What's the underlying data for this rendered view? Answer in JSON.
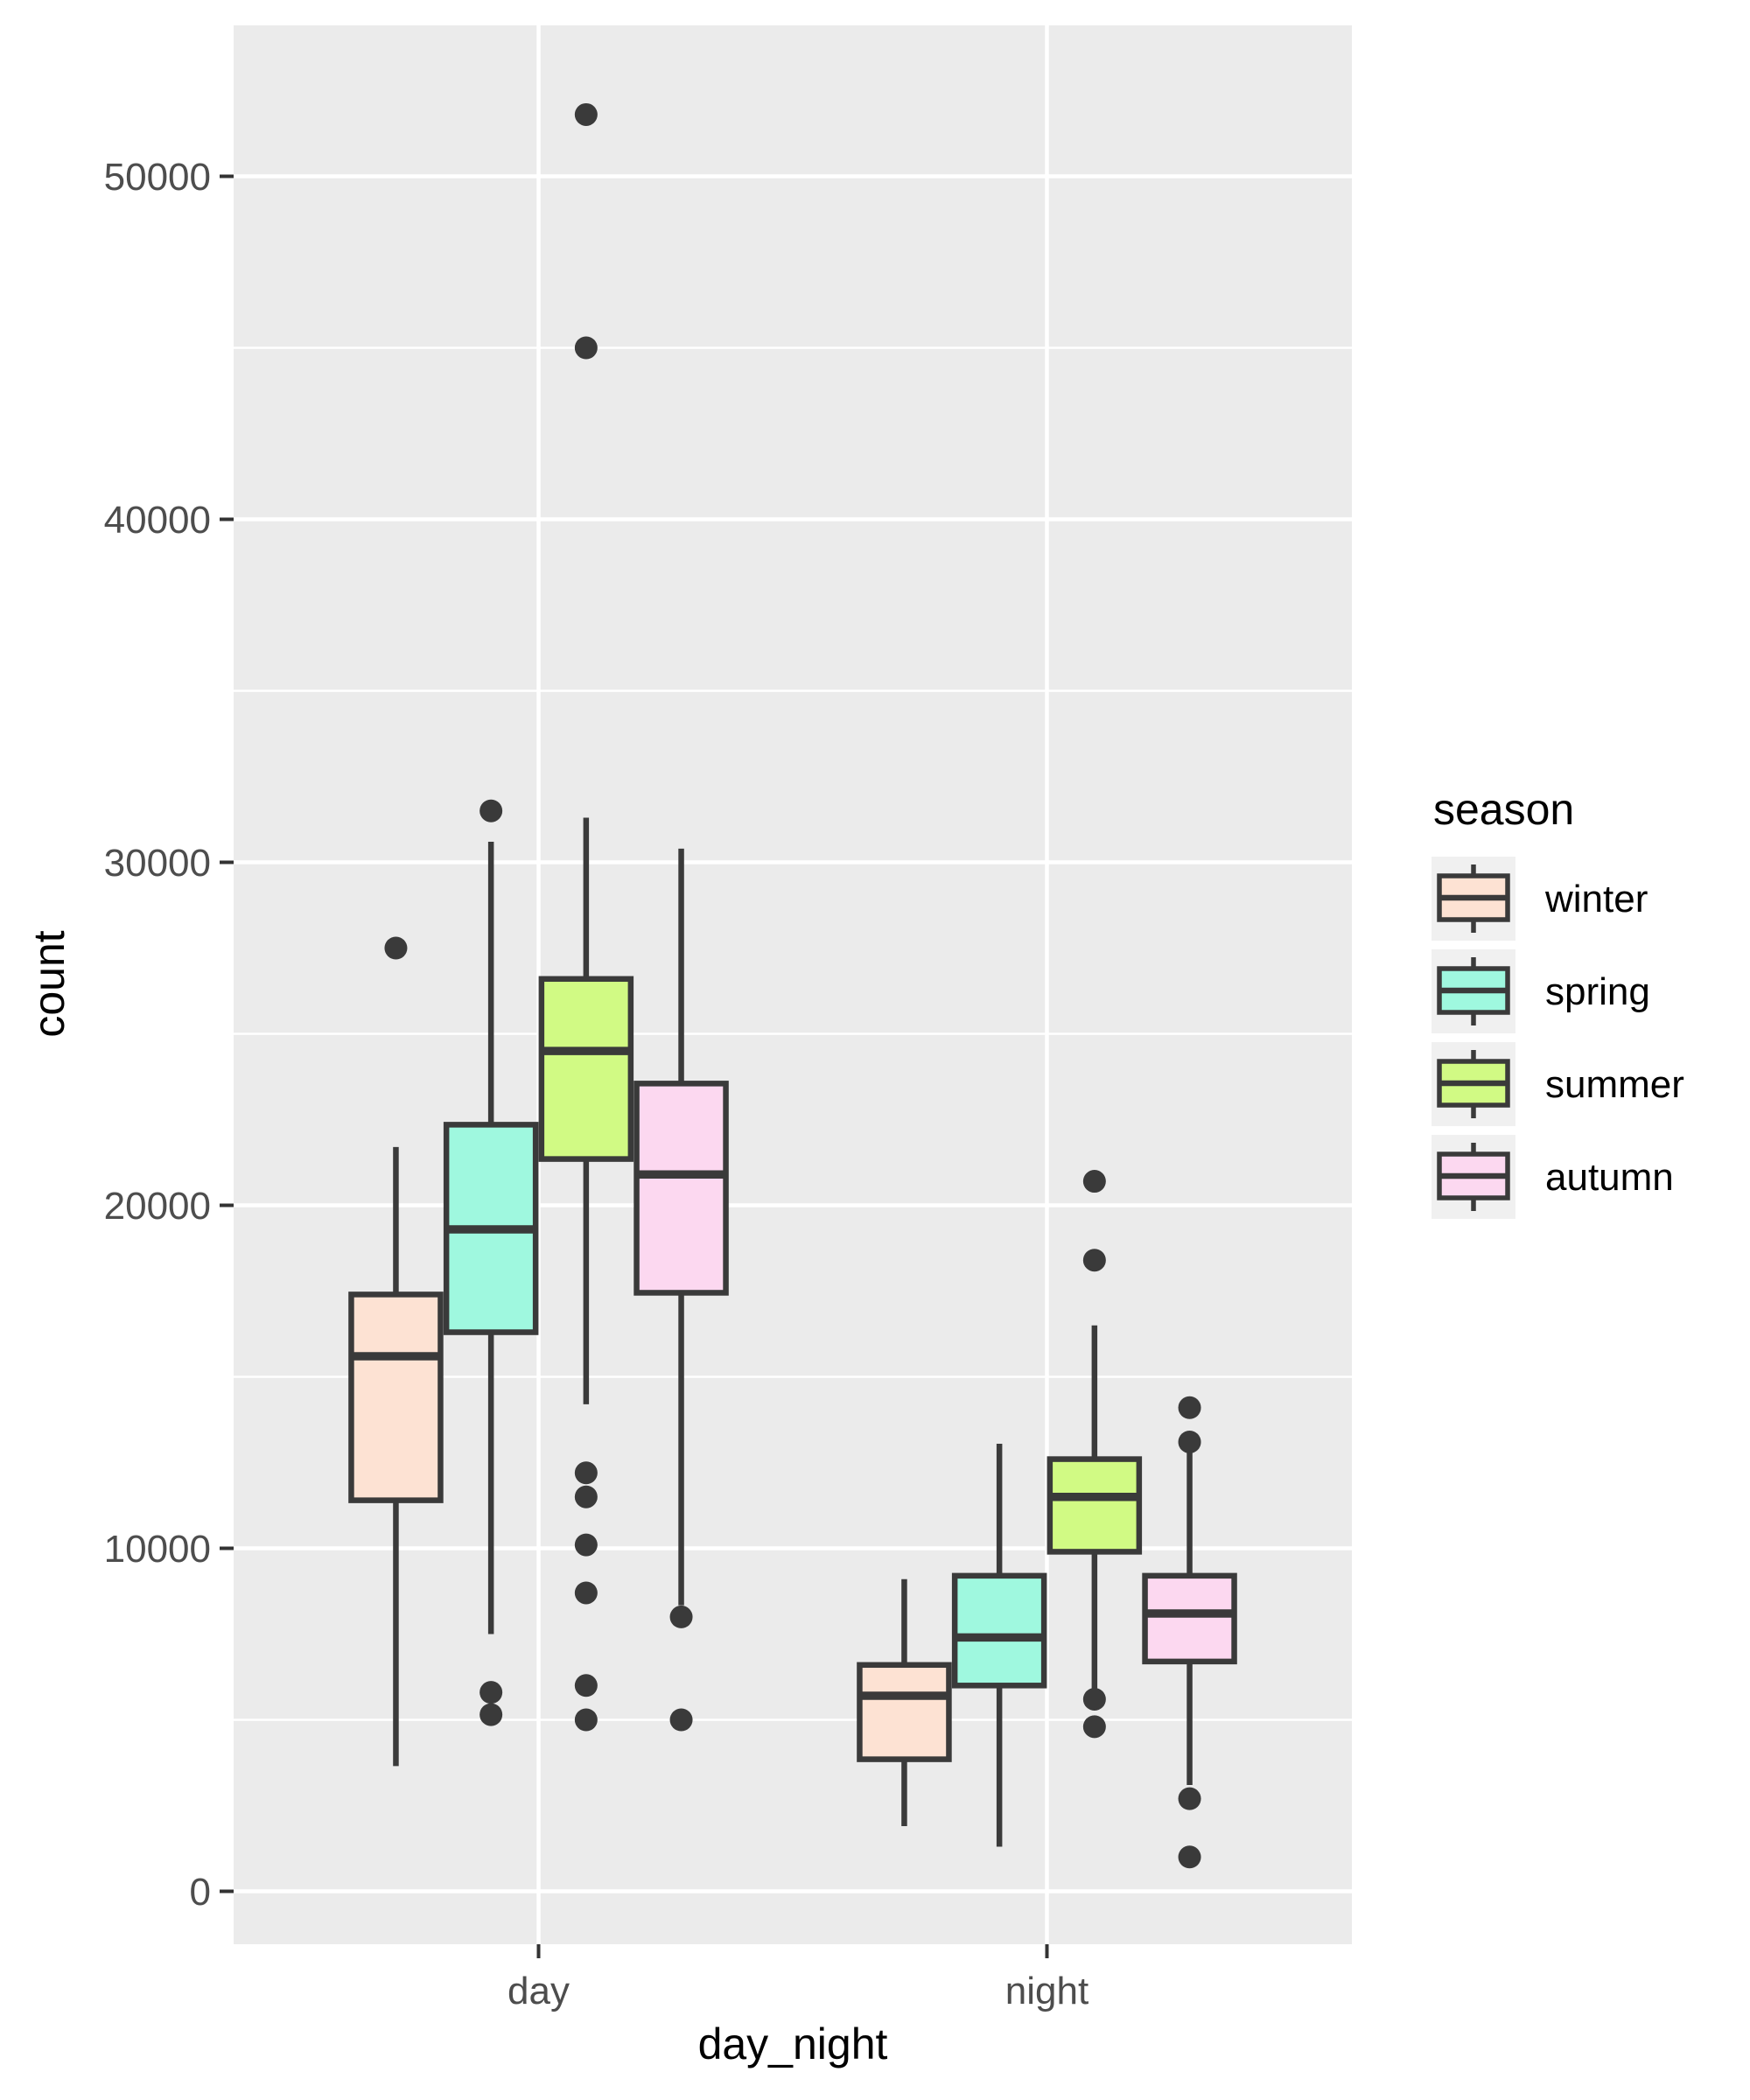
{
  "figure": {
    "background": "#FFFFFF"
  },
  "panel": {
    "background": "#EBEBEB",
    "grid_major_color": "#FFFFFF",
    "grid_minor_color": "#FFFFFF"
  },
  "axes": {
    "x": {
      "title": "day_night",
      "categories": [
        "day",
        "night"
      ]
    },
    "y": {
      "title": "count",
      "tick_labels": [
        "0",
        "10000",
        "20000",
        "30000",
        "40000",
        "50000"
      ],
      "tick_values": [
        0,
        10000,
        20000,
        30000,
        40000,
        50000
      ],
      "minor_tick_values": [
        5000,
        15000,
        25000,
        35000,
        45000
      ]
    }
  },
  "legend": {
    "title": "season"
  },
  "style": {
    "box_stroke": "#3A3A3A",
    "outlier_fill": "#3A3A3A",
    "tick_mark_color": "#333333",
    "tick_label_color": "#4D4D4D",
    "axis_title_color": "#000000",
    "legend_key_background": "#F0F0F0",
    "legend_text_color": "#000000"
  },
  "chart_data": {
    "type": "boxplot",
    "title": "",
    "xlabel": "day_night",
    "ylabel": "count",
    "categories": [
      "day",
      "night"
    ],
    "ylim": [
      -1550,
      54450
    ],
    "grid": true,
    "legend_position": "right",
    "series": [
      {
        "name": "winter",
        "fill": "#FDE2D3",
        "boxes": [
          {
            "category": "day",
            "whisker_min": 3650,
            "q1": 11400,
            "median": 15600,
            "q3": 17400,
            "whisker_max": 21700,
            "outliers": [
              27500
            ]
          },
          {
            "category": "night",
            "whisker_min": 1900,
            "q1": 3850,
            "median": 5700,
            "q3": 6600,
            "whisker_max": 9100,
            "outliers": []
          }
        ]
      },
      {
        "name": "spring",
        "fill": "#9FF8DF",
        "boxes": [
          {
            "category": "day",
            "whisker_min": 7500,
            "q1": 16300,
            "median": 19300,
            "q3": 22350,
            "whisker_max": 30600,
            "outliers": [
              31500,
              5800,
              5150
            ]
          },
          {
            "category": "night",
            "whisker_min": 1300,
            "q1": 6000,
            "median": 7400,
            "q3": 9200,
            "whisker_max": 13050,
            "outliers": []
          }
        ]
      },
      {
        "name": "summer",
        "fill": "#D1FA84",
        "boxes": [
          {
            "category": "day",
            "whisker_min": 14200,
            "q1": 21350,
            "median": 24500,
            "q3": 26600,
            "whisker_max": 31300,
            "outliers": [
              51800,
              45000,
              12200,
              11500,
              10100,
              8700,
              6000,
              5000
            ]
          },
          {
            "category": "night",
            "whisker_min": 5800,
            "q1": 9900,
            "median": 11500,
            "q3": 12600,
            "whisker_max": 16500,
            "outliers": [
              20700,
              18400,
              5600,
              4800
            ]
          }
        ]
      },
      {
        "name": "autumn",
        "fill": "#FCD8F0",
        "boxes": [
          {
            "category": "day",
            "whisker_min": 8340,
            "q1": 17450,
            "median": 20900,
            "q3": 23550,
            "whisker_max": 30400,
            "outliers": [
              8000,
              5000
            ]
          },
          {
            "category": "night",
            "whisker_min": 3100,
            "q1": 6700,
            "median": 8100,
            "q3": 9200,
            "whisker_max": 12900,
            "outliers": [
              14100,
              13100,
              2700,
              1000
            ]
          }
        ]
      }
    ]
  }
}
